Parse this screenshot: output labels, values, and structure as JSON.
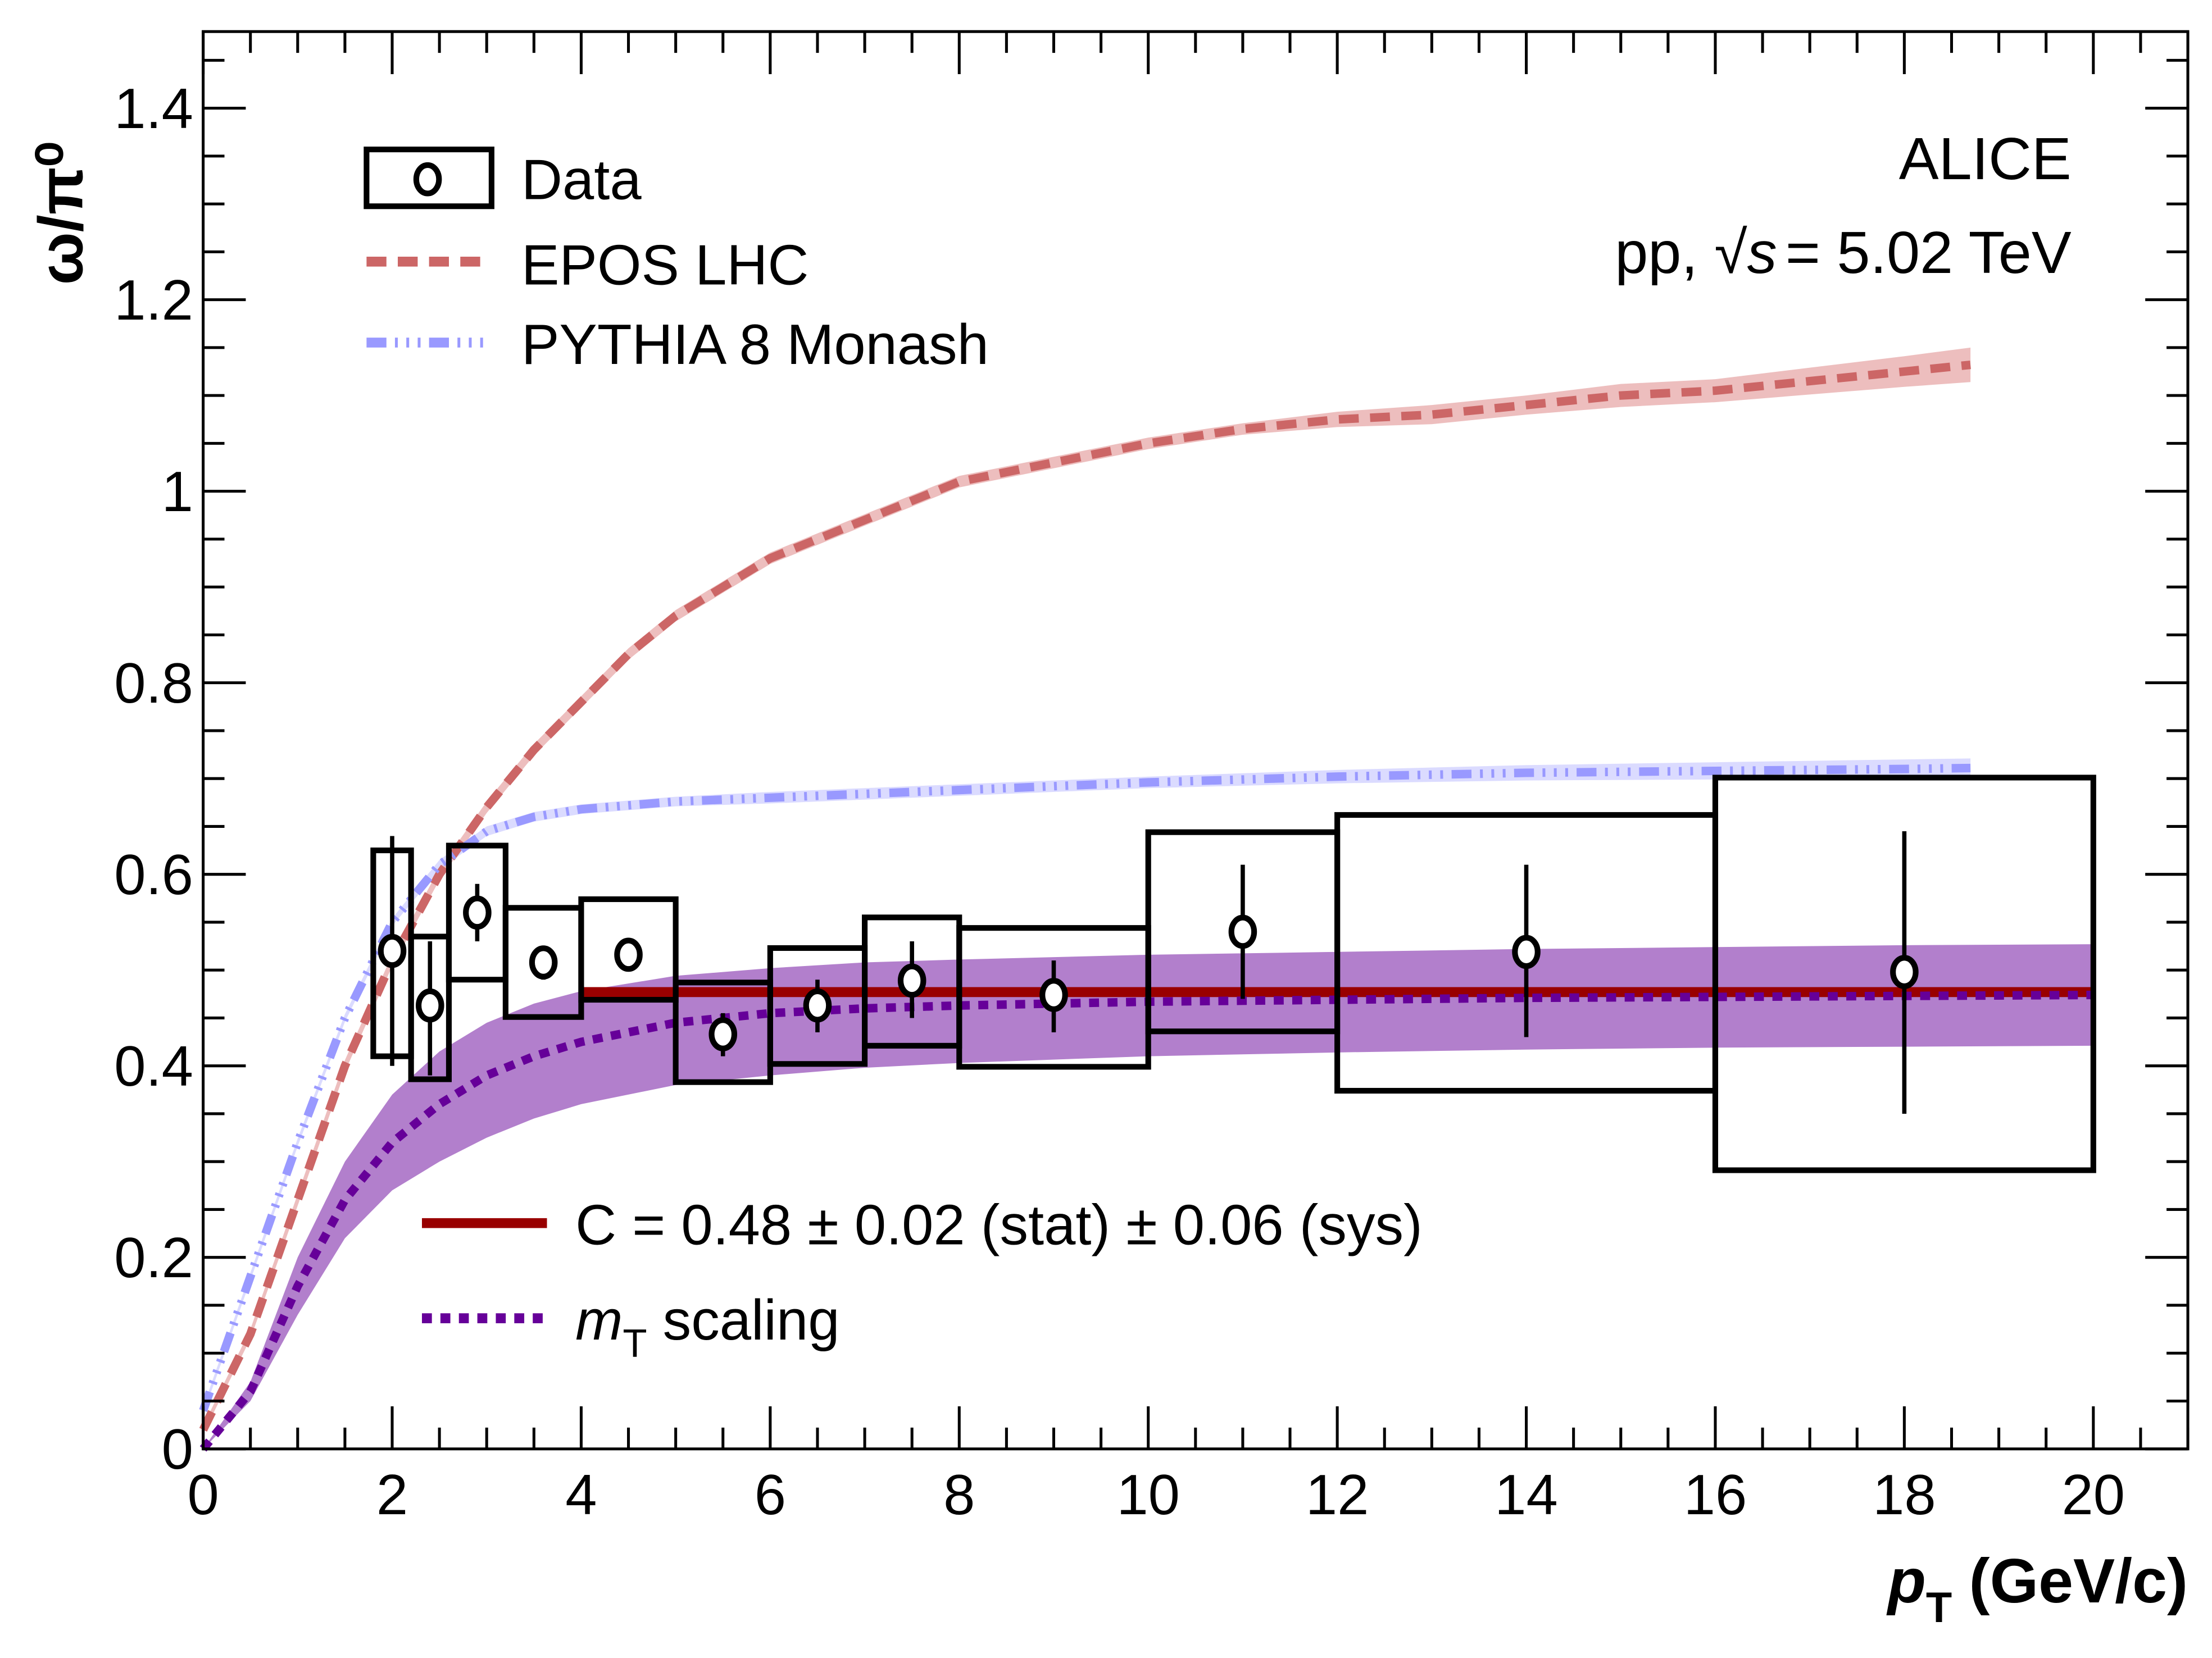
{
  "chart_data": {
    "type": "scatter",
    "title": "",
    "xlabel": "p_T (GeV/c)",
    "xlabel_main": "p",
    "xlabel_sub": "T",
    "xlabel_unit": "(GeV/c)",
    "ylabel": "ω/π⁰",
    "xlim": [
      0,
      21
    ],
    "ylim": [
      0,
      1.48
    ],
    "xticks": [
      0,
      2,
      4,
      6,
      8,
      10,
      12,
      14,
      16,
      18,
      20
    ],
    "xtick_labels": [
      "0",
      "2",
      "4",
      "6",
      "8",
      "10",
      "12",
      "14",
      "16",
      "18",
      "20"
    ],
    "yticks": [
      0,
      0.2,
      0.4,
      0.6,
      0.8,
      1.0,
      1.2,
      1.4
    ],
    "ytick_labels": [
      "0",
      "0.2",
      "0.4",
      "0.6",
      "0.8",
      "1",
      "1.2",
      "1.4"
    ],
    "annotations": {
      "experiment": "ALICE",
      "system_prefix": "pp, ",
      "sqrt_s": "s",
      "energy": "= 5.02 TeV"
    },
    "legend_top": [
      {
        "label": "Data",
        "style": "box-marker"
      },
      {
        "label": "EPOS LHC",
        "style": "dashed",
        "color": "#cc6666"
      },
      {
        "label": "PYTHIA 8 Monash",
        "style": "dash-dot",
        "color": "#9999ff"
      }
    ],
    "legend_bottom": [
      {
        "label": "C = 0.48 ± 0.02 (stat) ± 0.06 (sys)",
        "style": "solid",
        "color": "#990000"
      },
      {
        "label_main": "m",
        "label_sub": "T",
        "label_rest": " scaling",
        "style": "dotted",
        "color": "#660099"
      }
    ],
    "data": {
      "name": "Data",
      "points": [
        {
          "xlo": 1.8,
          "xhi": 2.2,
          "x": 2.0,
          "y": 0.52,
          "stat_lo": 0.4,
          "stat_hi": 0.64,
          "sys_lo": 0.41,
          "sys_hi": 0.625
        },
        {
          "xlo": 2.2,
          "xhi": 2.6,
          "x": 2.4,
          "y": 0.463,
          "stat_lo": 0.39,
          "stat_hi": 0.53,
          "sys_lo": 0.386,
          "sys_hi": 0.535
        },
        {
          "xlo": 2.6,
          "xhi": 3.2,
          "x": 2.9,
          "y": 0.56,
          "stat_lo": 0.53,
          "stat_hi": 0.59,
          "sys_lo": 0.49,
          "sys_hi": 0.63
        },
        {
          "xlo": 3.2,
          "xhi": 4.0,
          "x": 3.6,
          "y": 0.508,
          "stat_lo": 0.49,
          "stat_hi": 0.525,
          "sys_lo": 0.451,
          "sys_hi": 0.565
        },
        {
          "xlo": 4.0,
          "xhi": 5.0,
          "x": 4.5,
          "y": 0.516,
          "stat_lo": 0.5,
          "stat_hi": 0.53,
          "sys_lo": 0.469,
          "sys_hi": 0.574
        },
        {
          "xlo": 5.0,
          "xhi": 6.0,
          "x": 5.5,
          "y": 0.433,
          "stat_lo": 0.41,
          "stat_hi": 0.455,
          "sys_lo": 0.383,
          "sys_hi": 0.487
        },
        {
          "xlo": 6.0,
          "xhi": 7.0,
          "x": 6.5,
          "y": 0.463,
          "stat_lo": 0.435,
          "stat_hi": 0.49,
          "sys_lo": 0.402,
          "sys_hi": 0.523
        },
        {
          "xlo": 7.0,
          "xhi": 8.0,
          "x": 7.5,
          "y": 0.489,
          "stat_lo": 0.45,
          "stat_hi": 0.53,
          "sys_lo": 0.421,
          "sys_hi": 0.555
        },
        {
          "xlo": 8.0,
          "xhi": 10.0,
          "x": 9.0,
          "y": 0.474,
          "stat_lo": 0.435,
          "stat_hi": 0.51,
          "sys_lo": 0.399,
          "sys_hi": 0.544
        },
        {
          "xlo": 10.0,
          "xhi": 12.0,
          "x": 11.0,
          "y": 0.54,
          "stat_lo": 0.47,
          "stat_hi": 0.61,
          "sys_lo": 0.436,
          "sys_hi": 0.644
        },
        {
          "xlo": 12.0,
          "xhi": 16.0,
          "x": 14.0,
          "y": 0.519,
          "stat_lo": 0.43,
          "stat_hi": 0.61,
          "sys_lo": 0.374,
          "sys_hi": 0.662
        },
        {
          "xlo": 16.0,
          "xhi": 20.0,
          "x": 18.0,
          "y": 0.498,
          "stat_lo": 0.35,
          "stat_hi": 0.645,
          "sys_lo": 0.291,
          "sys_hi": 0.701
        }
      ]
    },
    "series": [
      {
        "name": "EPOS LHC",
        "color": "#cc6666",
        "band_color": "#e6a3a3",
        "x": [
          0,
          0.5,
          1,
          1.5,
          2,
          2.5,
          3,
          3.5,
          4,
          4.5,
          5,
          6,
          7,
          8,
          9,
          10,
          11,
          12,
          13,
          14,
          15,
          16,
          17,
          18,
          18.7
        ],
        "y": [
          0.02,
          0.12,
          0.26,
          0.4,
          0.51,
          0.6,
          0.67,
          0.73,
          0.78,
          0.83,
          0.87,
          0.93,
          0.97,
          1.01,
          1.03,
          1.05,
          1.065,
          1.075,
          1.08,
          1.09,
          1.1,
          1.105,
          1.115,
          1.125,
          1.132
        ],
        "band_halfwidth": [
          0.004,
          0.005,
          0.006,
          0.006,
          0.006,
          0.006,
          0.006,
          0.006,
          0.006,
          0.006,
          0.006,
          0.006,
          0.006,
          0.006,
          0.006,
          0.006,
          0.006,
          0.008,
          0.01,
          0.01,
          0.012,
          0.012,
          0.014,
          0.016,
          0.018
        ]
      },
      {
        "name": "PYTHIA 8 Monash",
        "color": "#9999ff",
        "band_color": "#ccccff",
        "x": [
          0,
          0.5,
          1,
          1.5,
          2,
          2.5,
          3,
          3.5,
          4,
          5,
          6,
          8,
          10,
          12,
          14,
          16,
          18,
          18.7
        ],
        "y": [
          0.04,
          0.18,
          0.32,
          0.45,
          0.55,
          0.61,
          0.645,
          0.66,
          0.668,
          0.676,
          0.68,
          0.688,
          0.696,
          0.702,
          0.706,
          0.708,
          0.71,
          0.711
        ],
        "band_halfwidth": [
          0.004,
          0.004,
          0.004,
          0.004,
          0.004,
          0.005,
          0.005,
          0.005,
          0.005,
          0.005,
          0.006,
          0.006,
          0.006,
          0.007,
          0.008,
          0.009,
          0.01,
          0.01
        ]
      },
      {
        "name": "C fit",
        "color": "#990000",
        "x": [
          4,
          20
        ],
        "y": [
          0.477,
          0.477
        ]
      },
      {
        "name": "mT scaling",
        "color": "#660099",
        "band_color": "#b27fcc",
        "x": [
          0,
          0.5,
          1,
          1.5,
          2,
          2.5,
          3,
          3.5,
          4,
          5,
          6,
          7,
          8,
          10,
          12,
          14,
          16,
          18,
          20
        ],
        "y": [
          0.0,
          0.06,
          0.17,
          0.26,
          0.32,
          0.36,
          0.39,
          0.41,
          0.425,
          0.445,
          0.455,
          0.46,
          0.463,
          0.467,
          0.469,
          0.471,
          0.472,
          0.473,
          0.474
        ],
        "band_lo": [
          0.0,
          0.05,
          0.14,
          0.22,
          0.27,
          0.3,
          0.325,
          0.345,
          0.36,
          0.38,
          0.39,
          0.398,
          0.403,
          0.41,
          0.414,
          0.417,
          0.419,
          0.42,
          0.421
        ],
        "band_hi": [
          0.0,
          0.07,
          0.2,
          0.3,
          0.37,
          0.415,
          0.445,
          0.465,
          0.478,
          0.494,
          0.502,
          0.508,
          0.511,
          0.516,
          0.519,
          0.522,
          0.524,
          0.526,
          0.527
        ]
      }
    ]
  }
}
